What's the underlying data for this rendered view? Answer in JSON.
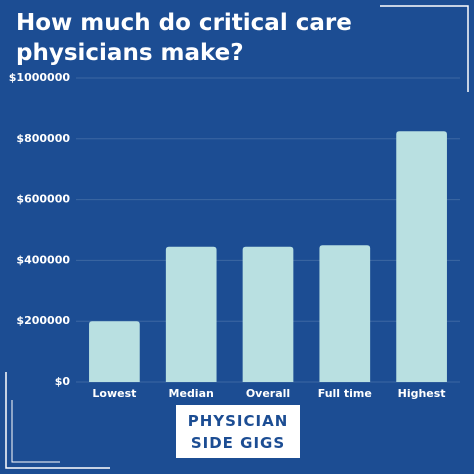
{
  "chart_data": {
    "type": "bar",
    "title": [
      "How much do critical care",
      "physicians make?"
    ],
    "categories": [
      "Lowest",
      "Median",
      "Overall",
      "Full time",
      "Highest"
    ],
    "values": [
      200000,
      445000,
      445000,
      450000,
      825000
    ],
    "color": "#b9e0e1",
    "ylim": [
      0,
      1000000
    ],
    "yticks": [
      {
        "value": 0,
        "label": "$0"
      },
      {
        "value": 200000,
        "label": "$200000"
      },
      {
        "value": 400000,
        "label": "$400000"
      },
      {
        "value": 600000,
        "label": "$600000"
      },
      {
        "value": 800000,
        "label": "$800000"
      },
      {
        "value": 1000000,
        "label": "$1000000"
      }
    ],
    "grid": true,
    "brand": [
      "PHYSICIAN",
      "SIDE GIGS"
    ]
  }
}
